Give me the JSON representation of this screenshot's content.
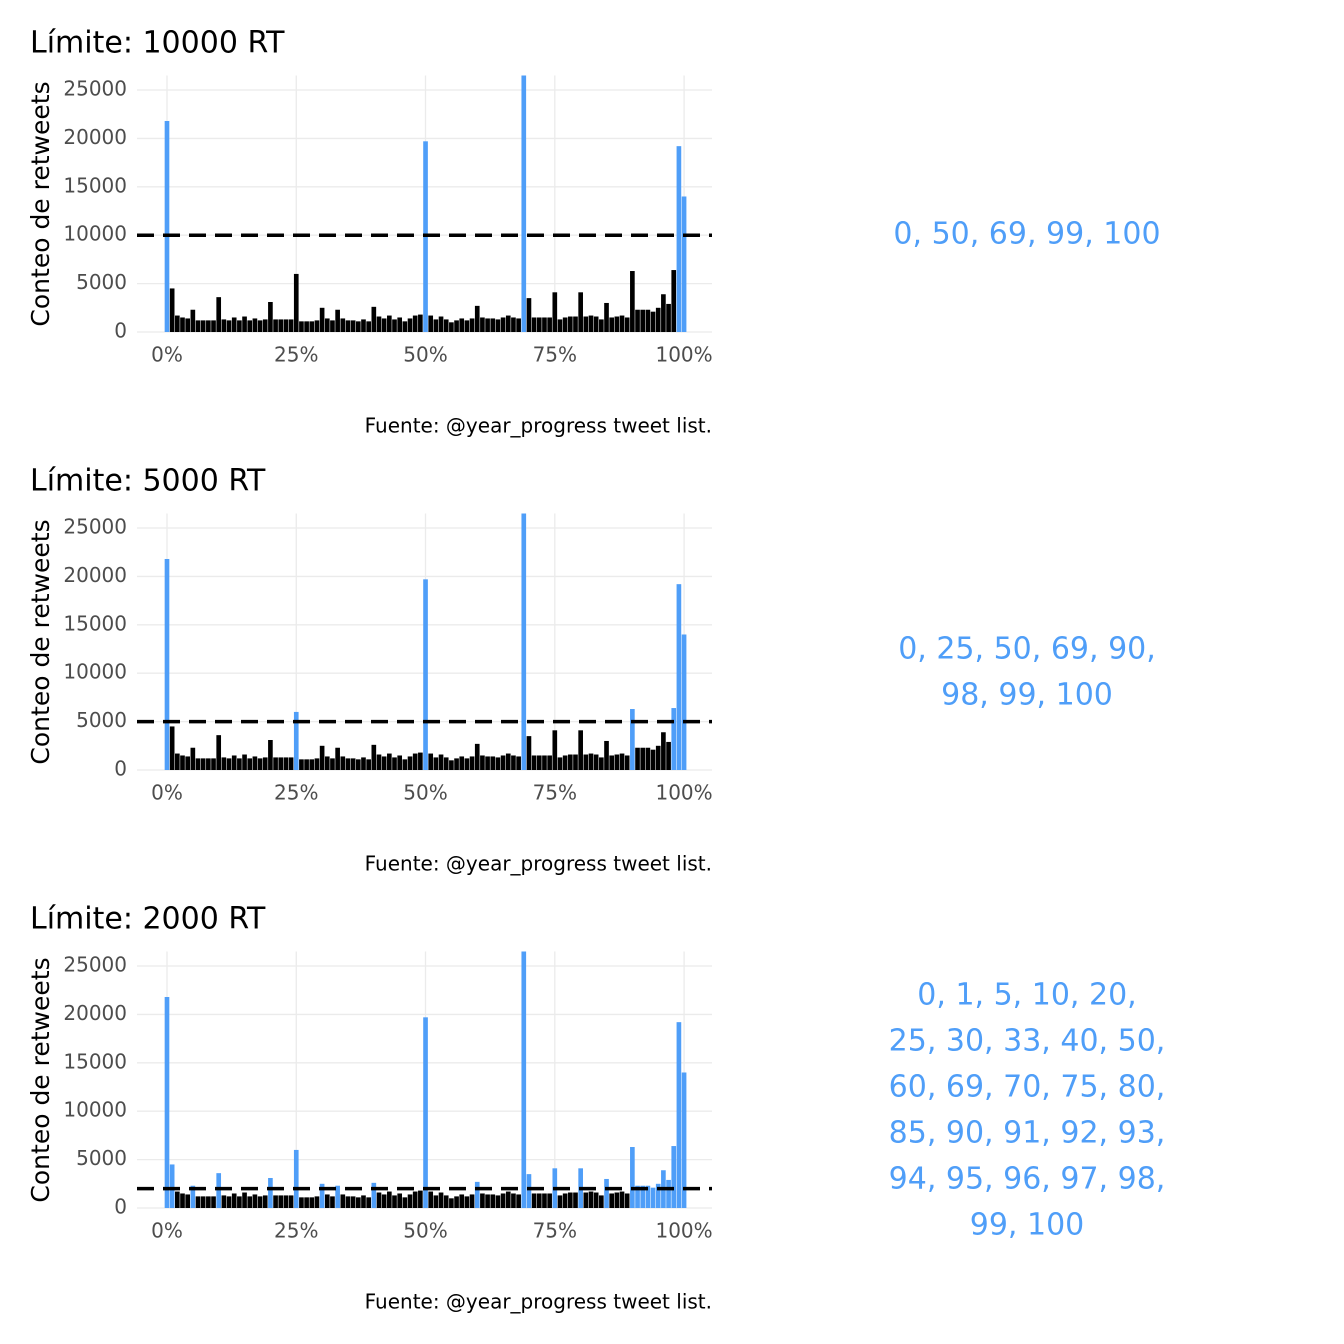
{
  "chart_data": [
    {
      "type": "bar",
      "title": "Límite: 10000 RT",
      "ylabel": "Conteo de retweets",
      "caption": "Fuente: @year_progress tweet list.",
      "x": [
        0,
        1,
        2,
        3,
        4,
        5,
        6,
        7,
        8,
        9,
        10,
        11,
        12,
        13,
        14,
        15,
        16,
        17,
        18,
        19,
        20,
        21,
        22,
        23,
        24,
        25,
        26,
        27,
        28,
        29,
        30,
        31,
        32,
        33,
        34,
        35,
        36,
        37,
        38,
        39,
        40,
        41,
        42,
        43,
        44,
        45,
        46,
        47,
        48,
        49,
        50,
        51,
        52,
        53,
        54,
        55,
        56,
        57,
        58,
        59,
        60,
        61,
        62,
        63,
        64,
        65,
        66,
        67,
        68,
        69,
        70,
        71,
        72,
        73,
        74,
        75,
        76,
        77,
        78,
        79,
        80,
        81,
        82,
        83,
        84,
        85,
        86,
        87,
        88,
        89,
        90,
        91,
        92,
        93,
        94,
        95,
        96,
        97,
        98,
        99,
        100
      ],
      "values": [
        21800,
        4500,
        1700,
        1500,
        1400,
        2300,
        1200,
        1200,
        1200,
        1200,
        3600,
        1300,
        1200,
        1500,
        1200,
        1600,
        1200,
        1400,
        1200,
        1300,
        3100,
        1300,
        1300,
        1300,
        1300,
        6000,
        1100,
        1100,
        1100,
        1200,
        2500,
        1400,
        1200,
        2300,
        1400,
        1200,
        1200,
        1100,
        1300,
        1100,
        2600,
        1600,
        1400,
        1700,
        1300,
        1500,
        1100,
        1400,
        1700,
        1800,
        19700,
        1700,
        1300,
        1600,
        1300,
        1000,
        1200,
        1400,
        1200,
        1400,
        2700,
        1500,
        1400,
        1400,
        1300,
        1500,
        1700,
        1500,
        1400,
        26500,
        3500,
        1500,
        1500,
        1500,
        1500,
        4100,
        1300,
        1500,
        1600,
        1600,
        4100,
        1600,
        1700,
        1600,
        1300,
        3000,
        1500,
        1600,
        1700,
        1500,
        6300,
        2300,
        2300,
        2300,
        2100,
        2500,
        3900,
        2900,
        6400,
        19200,
        14000
      ],
      "threshold": 10000,
      "color": "#000000",
      "highlight_color": "#4f9ef8",
      "xlim": [
        -5.8,
        105.4
      ],
      "ylim": [
        0,
        26500
      ],
      "xticks": [
        {
          "value": 0,
          "label": "0%"
        },
        {
          "value": 25,
          "label": "25%"
        },
        {
          "value": 50,
          "label": "50%"
        },
        {
          "value": 75,
          "label": "75%"
        },
        {
          "value": 100,
          "label": "100%"
        }
      ],
      "yticks": [
        0,
        5000,
        10000,
        15000,
        20000,
        25000
      ],
      "grid": true,
      "annotation_lines": [
        "0, 50, 69, 99, 100"
      ]
    },
    {
      "type": "bar",
      "title": "Límite: 5000 RT",
      "ylabel": "Conteo de retweets",
      "caption": "Fuente: @year_progress tweet list.",
      "x": [
        0,
        1,
        2,
        3,
        4,
        5,
        6,
        7,
        8,
        9,
        10,
        11,
        12,
        13,
        14,
        15,
        16,
        17,
        18,
        19,
        20,
        21,
        22,
        23,
        24,
        25,
        26,
        27,
        28,
        29,
        30,
        31,
        32,
        33,
        34,
        35,
        36,
        37,
        38,
        39,
        40,
        41,
        42,
        43,
        44,
        45,
        46,
        47,
        48,
        49,
        50,
        51,
        52,
        53,
        54,
        55,
        56,
        57,
        58,
        59,
        60,
        61,
        62,
        63,
        64,
        65,
        66,
        67,
        68,
        69,
        70,
        71,
        72,
        73,
        74,
        75,
        76,
        77,
        78,
        79,
        80,
        81,
        82,
        83,
        84,
        85,
        86,
        87,
        88,
        89,
        90,
        91,
        92,
        93,
        94,
        95,
        96,
        97,
        98,
        99,
        100
      ],
      "values": [
        21800,
        4500,
        1700,
        1500,
        1400,
        2300,
        1200,
        1200,
        1200,
        1200,
        3600,
        1300,
        1200,
        1500,
        1200,
        1600,
        1200,
        1400,
        1200,
        1300,
        3100,
        1300,
        1300,
        1300,
        1300,
        6000,
        1100,
        1100,
        1100,
        1200,
        2500,
        1400,
        1200,
        2300,
        1400,
        1200,
        1200,
        1100,
        1300,
        1100,
        2600,
        1600,
        1400,
        1700,
        1300,
        1500,
        1100,
        1400,
        1700,
        1800,
        19700,
        1700,
        1300,
        1600,
        1300,
        1000,
        1200,
        1400,
        1200,
        1400,
        2700,
        1500,
        1400,
        1400,
        1300,
        1500,
        1700,
        1500,
        1400,
        26500,
        3500,
        1500,
        1500,
        1500,
        1500,
        4100,
        1300,
        1500,
        1600,
        1600,
        4100,
        1600,
        1700,
        1600,
        1300,
        3000,
        1500,
        1600,
        1700,
        1500,
        6300,
        2300,
        2300,
        2300,
        2100,
        2500,
        3900,
        2900,
        6400,
        19200,
        14000
      ],
      "threshold": 5000,
      "color": "#000000",
      "highlight_color": "#4f9ef8",
      "xlim": [
        -5.8,
        105.4
      ],
      "ylim": [
        0,
        26500
      ],
      "xticks": [
        {
          "value": 0,
          "label": "0%"
        },
        {
          "value": 25,
          "label": "25%"
        },
        {
          "value": 50,
          "label": "50%"
        },
        {
          "value": 75,
          "label": "75%"
        },
        {
          "value": 100,
          "label": "100%"
        }
      ],
      "yticks": [
        0,
        5000,
        10000,
        15000,
        20000,
        25000
      ],
      "grid": true,
      "annotation_lines": [
        "0, 25, 50, 69, 90,",
        "98, 99, 100"
      ]
    },
    {
      "type": "bar",
      "title": "Límite: 2000 RT",
      "ylabel": "Conteo de retweets",
      "caption": "Fuente: @year_progress tweet list.",
      "x": [
        0,
        1,
        2,
        3,
        4,
        5,
        6,
        7,
        8,
        9,
        10,
        11,
        12,
        13,
        14,
        15,
        16,
        17,
        18,
        19,
        20,
        21,
        22,
        23,
        24,
        25,
        26,
        27,
        28,
        29,
        30,
        31,
        32,
        33,
        34,
        35,
        36,
        37,
        38,
        39,
        40,
        41,
        42,
        43,
        44,
        45,
        46,
        47,
        48,
        49,
        50,
        51,
        52,
        53,
        54,
        55,
        56,
        57,
        58,
        59,
        60,
        61,
        62,
        63,
        64,
        65,
        66,
        67,
        68,
        69,
        70,
        71,
        72,
        73,
        74,
        75,
        76,
        77,
        78,
        79,
        80,
        81,
        82,
        83,
        84,
        85,
        86,
        87,
        88,
        89,
        90,
        91,
        92,
        93,
        94,
        95,
        96,
        97,
        98,
        99,
        100
      ],
      "values": [
        21800,
        4500,
        1700,
        1500,
        1400,
        2300,
        1200,
        1200,
        1200,
        1200,
        3600,
        1300,
        1200,
        1500,
        1200,
        1600,
        1200,
        1400,
        1200,
        1300,
        3100,
        1300,
        1300,
        1300,
        1300,
        6000,
        1100,
        1100,
        1100,
        1200,
        2500,
        1400,
        1200,
        2300,
        1400,
        1200,
        1200,
        1100,
        1300,
        1100,
        2600,
        1600,
        1400,
        1700,
        1300,
        1500,
        1100,
        1400,
        1700,
        1800,
        19700,
        1700,
        1300,
        1600,
        1300,
        1000,
        1200,
        1400,
        1200,
        1400,
        2700,
        1500,
        1400,
        1400,
        1300,
        1500,
        1700,
        1500,
        1400,
        26500,
        3500,
        1500,
        1500,
        1500,
        1500,
        4100,
        1300,
        1500,
        1600,
        1600,
        4100,
        1600,
        1700,
        1600,
        1300,
        3000,
        1500,
        1600,
        1700,
        1500,
        6300,
        2300,
        2300,
        2300,
        2100,
        2500,
        3900,
        2900,
        6400,
        19200,
        14000
      ],
      "threshold": 2000,
      "color": "#000000",
      "highlight_color": "#4f9ef8",
      "xlim": [
        -5.8,
        105.4
      ],
      "ylim": [
        0,
        26500
      ],
      "xticks": [
        {
          "value": 0,
          "label": "0%"
        },
        {
          "value": 25,
          "label": "25%"
        },
        {
          "value": 50,
          "label": "50%"
        },
        {
          "value": 75,
          "label": "75%"
        },
        {
          "value": 100,
          "label": "100%"
        }
      ],
      "yticks": [
        0,
        5000,
        10000,
        15000,
        20000,
        25000
      ],
      "grid": true,
      "annotation_lines": [
        "0, 1, 5, 10, 20,",
        "25, 30, 33, 40, 50,",
        "60, 69, 70, 75, 80,",
        "85, 90, 91, 92, 93,",
        "94, 95, 96, 97, 98,",
        "99, 100"
      ]
    }
  ]
}
